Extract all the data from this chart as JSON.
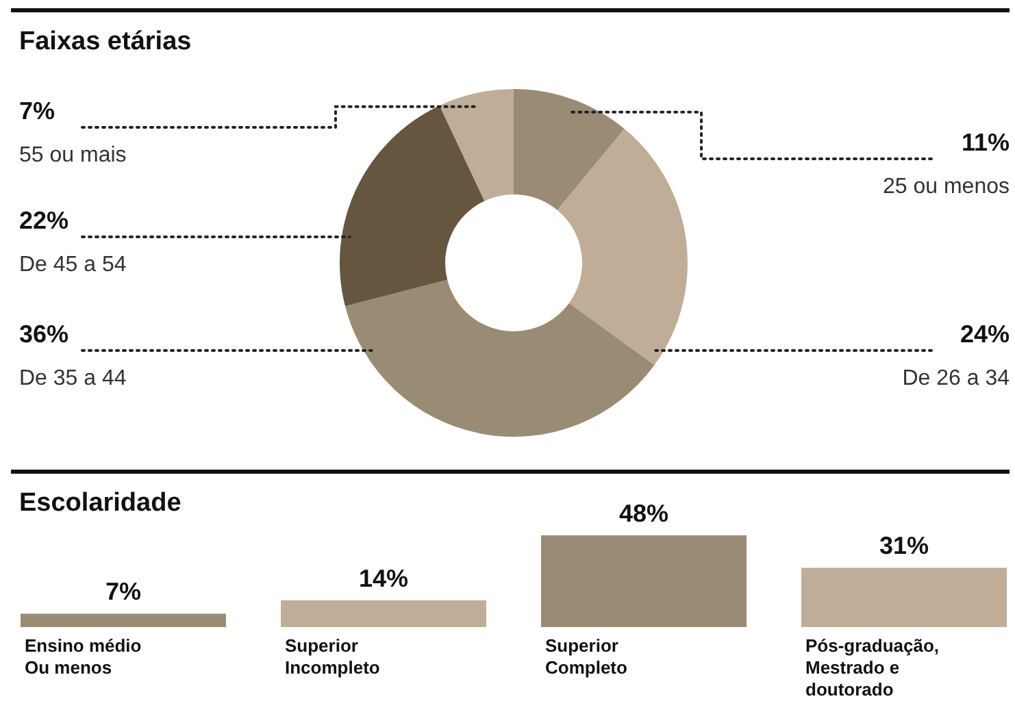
{
  "chart_data": [
    {
      "type": "donut",
      "title": "Faixas etárias",
      "categories": [
        "25 ou menos",
        "De 26 a 34",
        "De 35 a 44",
        "De 45 a 54",
        "55 ou mais"
      ],
      "values": [
        11,
        24,
        36,
        22,
        7
      ],
      "colors": [
        "#9a8c74",
        "#c0ad98",
        "#9a8c74",
        "#67563f",
        "#c0ad98"
      ],
      "value_labels": [
        "11%",
        "24%",
        "36%",
        "22%",
        "7%"
      ]
    },
    {
      "type": "bar",
      "title": "Escolaridade",
      "categories": [
        "Ensino médio\nOu menos",
        "Superior\nIncompleto",
        "Superior\nCompleto",
        "Pós-graduação,\nMestrado e\ndoutorado"
      ],
      "values": [
        7,
        14,
        48,
        31
      ],
      "colors": [
        "#9a8c74",
        "#c0ad98",
        "#9a8c74",
        "#c0ad98"
      ],
      "value_labels": [
        "7%",
        "14%",
        "48%",
        "31%"
      ]
    }
  ]
}
